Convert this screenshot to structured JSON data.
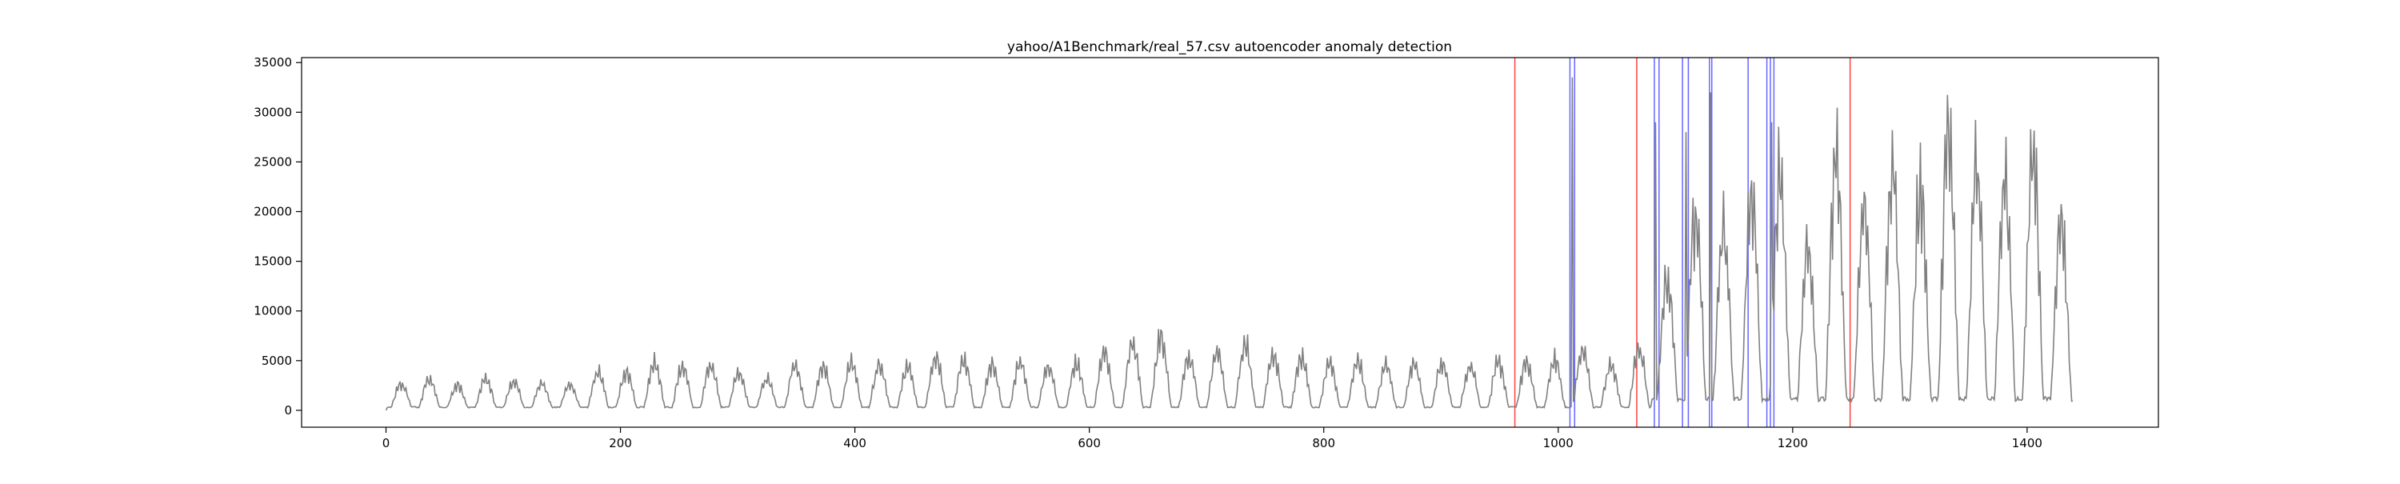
{
  "chart_data": {
    "type": "line",
    "title": "yahoo/A1Benchmark/real_57.csv autoencoder anomaly detection",
    "xlabel": "",
    "ylabel": "",
    "xlim": [
      -72,
      1512
    ],
    "ylim": [
      -1700,
      35500
    ],
    "x_ticks": [
      0,
      200,
      400,
      600,
      800,
      1000,
      1200,
      1400
    ],
    "y_ticks": [
      0,
      5000,
      10000,
      15000,
      20000,
      25000,
      30000,
      35000
    ],
    "grid": false,
    "legend": "none",
    "n_points": 1440,
    "period": 24,
    "series": [
      {
        "color": "#808080",
        "daily_peaks": [
          2600,
          3100,
          2500,
          3200,
          2800,
          2600,
          2500,
          3800,
          3700,
          4700,
          4300,
          4500,
          3700,
          3100,
          4400,
          4300,
          4600,
          4500,
          4200,
          5300,
          5000,
          4500,
          4700,
          4300,
          4600,
          5700,
          6500,
          7200,
          5300,
          5700,
          6400,
          5600,
          5200,
          4700,
          4800,
          4400,
          4600,
          4600,
          4400,
          4800,
          4700,
          5000,
          6000,
          4500,
          6000,
          13000,
          20000,
          18000,
          21000,
          23000,
          16000,
          25500,
          20000,
          24000,
          22000,
          28500,
          24000,
          22500,
          26500,
          19000,
          20000,
          22000,
          19000,
          17000,
          19000,
          22000,
          20000,
          21000,
          21000,
          22000,
          18000,
          18000,
          19000,
          22000,
          20000,
          18000,
          21000,
          23000,
          21000,
          19000,
          20000,
          21000,
          24000,
          20000,
          19000,
          20000,
          23000,
          20000,
          20000,
          21000
        ],
        "spikes": [
          [
            1012,
            33500
          ],
          [
            1083,
            29000
          ],
          [
            1109,
            28000
          ],
          [
            1130,
            32000
          ],
          [
            1182,
            29000
          ]
        ]
      }
    ],
    "true_anomalies": [
      963,
      1067,
      1249
    ],
    "detected_anomalies": [
      1010,
      1014,
      1082,
      1086,
      1106,
      1111,
      1129,
      1131,
      1162,
      1178,
      1181,
      1184
    ],
    "colors": {
      "series": "#808080",
      "true_anomaly": "#ff0000",
      "detected_anomaly": "#0000ff"
    }
  }
}
